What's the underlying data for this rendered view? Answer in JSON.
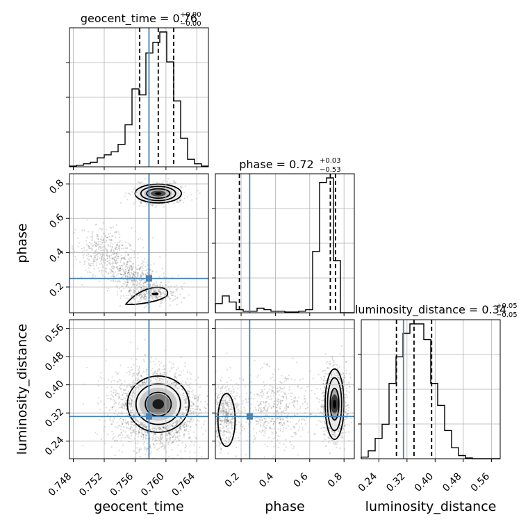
{
  "chart_data": {
    "type": "corner",
    "parameters": [
      "geocent_time",
      "phase",
      "luminosity_distance"
    ],
    "titles": [
      {
        "label": "geocent_time = 0.76",
        "sup": "+0.00",
        "sub": "−0.00"
      },
      {
        "label": "phase = 0.72",
        "sup": "+0.03",
        "sub": "−0.53"
      },
      {
        "label": "luminosity_distance = 0.34",
        "sup": "+0.05",
        "sub": "−0.05"
      }
    ],
    "axis_labels": {
      "geocent_time": "geocent_time",
      "phase": "phase",
      "luminosity_distance": "luminosity_distance"
    },
    "ranges": {
      "geocent_time": [
        0.7475,
        0.7655
      ],
      "phase": [
        0.05,
        0.86
      ],
      "luminosity_distance": [
        0.19,
        0.585
      ]
    },
    "ticks": {
      "geocent_time": [
        "0.748",
        "0.752",
        "0.756",
        "0.760",
        "0.764"
      ],
      "phase": [
        "0.2",
        "0.4",
        "0.6",
        "0.8"
      ],
      "luminosity_distance": [
        "0.24",
        "0.32",
        "0.40",
        "0.48",
        "0.56"
      ]
    },
    "truths": {
      "geocent_time": 0.7578,
      "phase": 0.25,
      "luminosity_distance": 0.31
    },
    "quantiles": {
      "geocent_time": [
        0.7566,
        0.759,
        0.761
      ],
      "phase": [
        0.19,
        0.72,
        0.75
      ],
      "luminosity_distance": [
        0.29,
        0.34,
        0.39
      ]
    },
    "histograms": {
      "geocent_time": {
        "bin_start": 0.7475,
        "bin_width": 0.0009,
        "counts": [
          0.5,
          1,
          2,
          3,
          6,
          8,
          10,
          15,
          28,
          52,
          48,
          76,
          83,
          90,
          70,
          44,
          19,
          5,
          2,
          0.5
        ]
      },
      "phase": {
        "bin_start": 0.05,
        "bin_width": 0.0405,
        "counts": [
          6,
          11,
          7,
          2,
          1,
          1,
          3,
          2,
          1,
          1,
          0.5,
          0.5,
          1,
          2,
          40,
          85,
          88,
          34,
          0,
          0
        ]
      },
      "luminosity_distance": {
        "bin_start": 0.19,
        "bin_width": 0.01975,
        "counts": [
          1,
          5,
          13,
          22,
          48,
          65,
          80,
          86,
          86,
          76,
          48,
          34,
          18,
          7,
          2,
          0.5,
          0,
          0,
          0,
          0
        ]
      }
    },
    "truth_color": "#4682b4",
    "hist_color": "#000000",
    "grid": true
  }
}
